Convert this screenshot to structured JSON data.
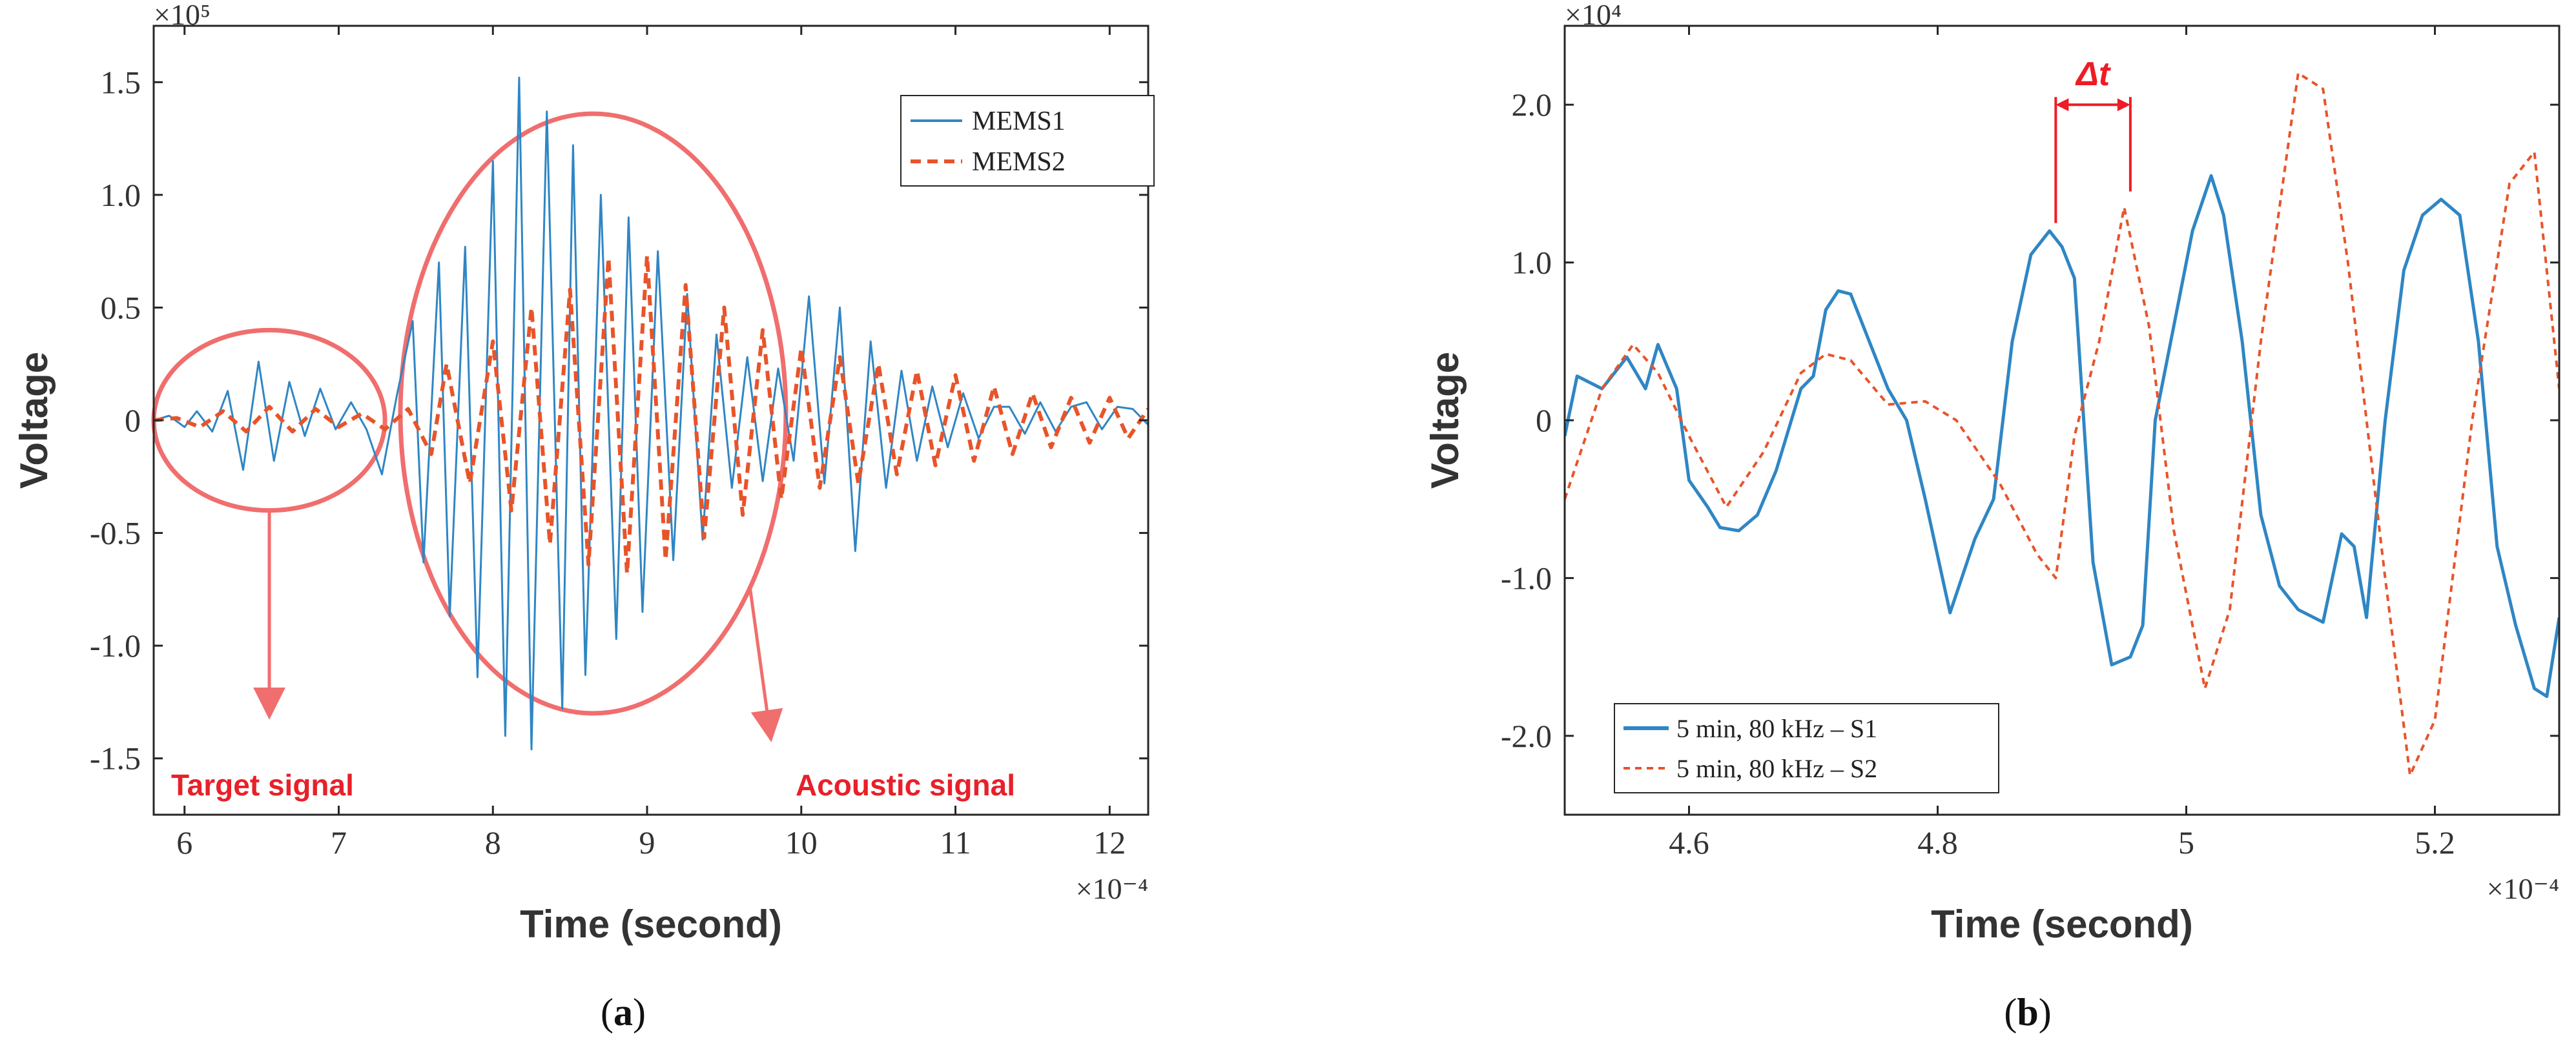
{
  "colors": {
    "mems1": "#2f86c4",
    "mems2": "#e8542a",
    "annotation": "#f06e6e",
    "label_red": "#e8202a",
    "axis": "#262626",
    "dt": "#ee1c25"
  },
  "chart_data": [
    {
      "id": "a",
      "panel_label_open": "(",
      "panel_label_letter": "a",
      "panel_label_close": ")",
      "type": "line",
      "xlabel": "Time (second)",
      "ylabel": "Voltage",
      "x_multiplier": "×10⁻⁴",
      "y_multiplier": "×10⁵",
      "xlim": [
        5.8,
        12.25
      ],
      "ylim": [
        -1.75,
        1.75
      ],
      "xticks": [
        6,
        7,
        8,
        9,
        10,
        11,
        12
      ],
      "xtick_labels": [
        "6",
        "7",
        "8",
        "9",
        "10",
        "11",
        "12"
      ],
      "yticks": [
        -1.5,
        -1.0,
        -0.5,
        0,
        0.5,
        1.0,
        1.5
      ],
      "ytick_labels": [
        "-1.5",
        "-1.0",
        "-0.5",
        "0",
        "0.5",
        "1.0",
        "1.5"
      ],
      "legend_position": "top-right",
      "series": [
        {
          "name": "MEMS1",
          "style": "solid",
          "x": [
            5.8,
            5.9,
            6.0,
            6.08,
            6.18,
            6.28,
            6.38,
            6.48,
            6.58,
            6.68,
            6.78,
            6.88,
            6.98,
            7.08,
            7.18,
            7.28,
            7.38,
            7.48,
            7.55,
            7.65,
            7.72,
            7.82,
            7.9,
            8.0,
            8.08,
            8.17,
            8.25,
            8.35,
            8.45,
            8.52,
            8.6,
            8.7,
            8.8,
            8.88,
            8.97,
            9.07,
            9.17,
            9.26,
            9.36,
            9.45,
            9.55,
            9.65,
            9.75,
            9.85,
            9.95,
            10.05,
            10.15,
            10.25,
            10.35,
            10.45,
            10.55,
            10.65,
            10.75,
            10.85,
            10.95,
            11.05,
            11.15,
            11.25,
            11.35,
            11.45,
            11.55,
            11.65,
            11.75,
            11.85,
            11.95,
            12.05,
            12.15,
            12.25
          ],
          "values": [
            0,
            0.02,
            -0.03,
            0.04,
            -0.05,
            0.13,
            -0.22,
            0.26,
            -0.18,
            0.17,
            -0.07,
            0.14,
            -0.04,
            0.08,
            -0.04,
            -0.24,
            0.12,
            0.44,
            -0.63,
            0.7,
            -0.87,
            0.77,
            -1.14,
            1.15,
            -1.4,
            1.52,
            -1.46,
            1.37,
            -1.28,
            1.22,
            -1.13,
            1.0,
            -0.97,
            0.9,
            -0.85,
            0.75,
            -0.62,
            0.56,
            -0.53,
            0.38,
            -0.3,
            0.28,
            -0.27,
            0.23,
            -0.18,
            0.55,
            -0.28,
            0.5,
            -0.58,
            0.35,
            -0.3,
            0.22,
            -0.18,
            0.15,
            -0.12,
            0.12,
            -0.08,
            0.06,
            0.06,
            -0.06,
            0.08,
            -0.05,
            0.06,
            0.08,
            -0.04,
            0.06,
            0.05,
            -0.02
          ]
        },
        {
          "name": "MEMS2",
          "style": "dashed",
          "x": [
            5.8,
            5.95,
            6.1,
            6.25,
            6.4,
            6.55,
            6.7,
            6.85,
            7.0,
            7.15,
            7.3,
            7.45,
            7.6,
            7.7,
            7.85,
            8.0,
            8.12,
            8.25,
            8.37,
            8.5,
            8.62,
            8.75,
            8.87,
            9.0,
            9.12,
            9.25,
            9.37,
            9.5,
            9.62,
            9.75,
            9.87,
            10.0,
            10.12,
            10.25,
            10.37,
            10.5,
            10.62,
            10.75,
            10.87,
            11.0,
            11.12,
            11.25,
            11.37,
            11.5,
            11.62,
            11.75,
            11.87,
            12.0,
            12.12,
            12.25
          ],
          "values": [
            0,
            0.01,
            -0.03,
            0.04,
            -0.05,
            0.06,
            -0.05,
            0.05,
            -0.03,
            0.03,
            -0.04,
            0.05,
            -0.15,
            0.25,
            -0.28,
            0.35,
            -0.4,
            0.5,
            -0.55,
            0.58,
            -0.64,
            0.72,
            -0.68,
            0.73,
            -0.62,
            0.6,
            -0.52,
            0.5,
            -0.42,
            0.4,
            -0.35,
            0.32,
            -0.3,
            0.28,
            -0.28,
            0.25,
            -0.24,
            0.22,
            -0.2,
            0.2,
            -0.18,
            0.15,
            -0.15,
            0.12,
            -0.12,
            0.1,
            -0.1,
            0.1,
            -0.08,
            0.05
          ]
        }
      ],
      "annotations": [
        {
          "text": "Target signal",
          "center": [
            6.55,
            0
          ],
          "rx": 0.75,
          "ry": 0.4,
          "arrow_to": [
            6.55,
            -1.3
          ]
        },
        {
          "text": "Acoustic signal",
          "center": [
            8.65,
            0.03
          ],
          "rx": 1.25,
          "ry": 1.33,
          "arrow_to": [
            9.8,
            -1.4
          ]
        }
      ]
    },
    {
      "id": "b",
      "panel_label_open": "(",
      "panel_label_letter": "b",
      "panel_label_close": ")",
      "type": "line",
      "xlabel": "Time (second)",
      "ylabel": "Voltage",
      "x_multiplier": "×10⁻⁴",
      "y_multiplier": "×10⁴",
      "xlim": [
        4.5,
        5.3
      ],
      "ylim": [
        -2.5,
        2.5
      ],
      "xticks": [
        4.6,
        4.8,
        5.0,
        5.2
      ],
      "xtick_labels": [
        "4.6",
        "4.8",
        "5",
        "5.2"
      ],
      "yticks": [
        -2.0,
        -1.0,
        0,
        1.0,
        2.0
      ],
      "ytick_labels": [
        "-2.0",
        "-1.0",
        "0",
        "1.0",
        "2.0"
      ],
      "legend_position": "bottom-left",
      "series": [
        {
          "name": "5 min, 80 kHz – S1",
          "style": "solid",
          "x": [
            4.5,
            4.51,
            4.53,
            4.55,
            4.565,
            4.575,
            4.59,
            4.6,
            4.615,
            4.625,
            4.64,
            4.655,
            4.67,
            4.69,
            4.7,
            4.71,
            4.72,
            4.73,
            4.745,
            4.76,
            4.775,
            4.79,
            4.81,
            4.83,
            4.845,
            4.86,
            4.875,
            4.89,
            4.9,
            4.91,
            4.925,
            4.94,
            4.955,
            4.965,
            4.975,
            4.99,
            5.005,
            5.02,
            5.03,
            5.045,
            5.06,
            5.075,
            5.09,
            5.11,
            5.125,
            5.135,
            5.145,
            5.16,
            5.175,
            5.19,
            5.205,
            5.22,
            5.235,
            5.25,
            5.265,
            5.28,
            5.29,
            5.3
          ],
          "values": [
            -0.1,
            0.28,
            0.2,
            0.4,
            0.2,
            0.48,
            0.2,
            -0.38,
            -0.55,
            -0.68,
            -0.7,
            -0.6,
            -0.32,
            0.2,
            0.28,
            0.7,
            0.82,
            0.8,
            0.5,
            0.2,
            0.0,
            -0.5,
            -1.22,
            -0.75,
            -0.5,
            0.5,
            1.05,
            1.2,
            1.1,
            0.9,
            -0.9,
            -1.55,
            -1.5,
            -1.3,
            0.0,
            0.6,
            1.2,
            1.55,
            1.3,
            0.5,
            -0.6,
            -1.05,
            -1.2,
            -1.28,
            -0.72,
            -0.8,
            -1.25,
            0.0,
            0.95,
            1.3,
            1.4,
            1.3,
            0.5,
            -0.8,
            -1.3,
            -1.7,
            -1.75,
            -1.25
          ]
        },
        {
          "name": "5 min, 80 kHz – S2",
          "style": "dashed",
          "x": [
            4.5,
            4.53,
            4.555,
            4.575,
            4.6,
            4.63,
            4.66,
            4.69,
            4.71,
            4.73,
            4.76,
            4.79,
            4.815,
            4.85,
            4.88,
            4.895,
            4.91,
            4.93,
            4.95,
            4.97,
            4.99,
            5.015,
            5.035,
            5.06,
            5.09,
            5.11,
            5.13,
            5.16,
            5.18,
            5.2,
            5.23,
            5.26,
            5.28,
            5.3
          ],
          "values": [
            -0.5,
            0.2,
            0.48,
            0.3,
            -0.1,
            -0.55,
            -0.2,
            0.3,
            0.42,
            0.38,
            0.1,
            0.12,
            0.0,
            -0.4,
            -0.85,
            -1.0,
            -0.1,
            0.5,
            1.35,
            0.6,
            -0.7,
            -1.7,
            -1.2,
            0.5,
            2.2,
            2.1,
            1.0,
            -1.0,
            -2.25,
            -1.9,
            0.0,
            1.5,
            1.7,
            0.2
          ]
        }
      ],
      "delta_t": {
        "label": "Δt",
        "x1": 4.895,
        "x2": 4.955,
        "y": 2.0
      }
    }
  ]
}
